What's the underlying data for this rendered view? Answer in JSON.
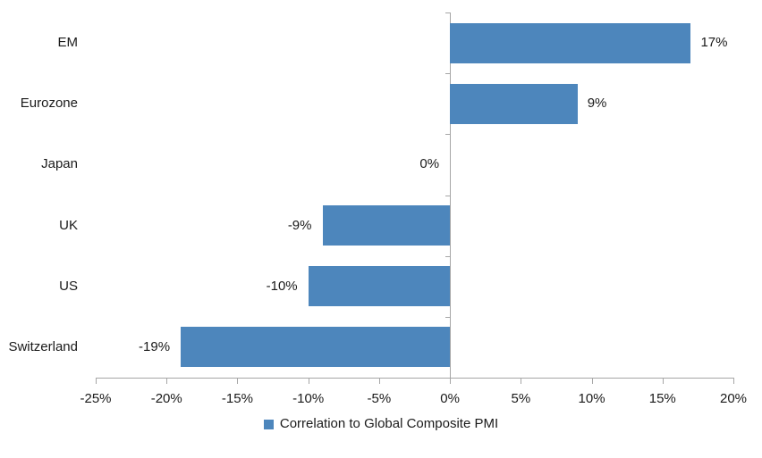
{
  "chart_data": {
    "type": "bar",
    "orientation": "horizontal",
    "title": "",
    "xlabel": "",
    "ylabel": "",
    "categories": [
      "EM",
      "Eurozone",
      "Japan",
      "UK",
      "US",
      "Switzerland"
    ],
    "series": [
      {
        "name": "Correlation to Global Composite PMI",
        "values": [
          17,
          9,
          0,
          -9,
          -10,
          -19
        ],
        "data_labels": [
          "17%",
          "9%",
          "0%",
          "-9%",
          "-10%",
          "-19%"
        ]
      }
    ],
    "xlim": [
      -25,
      20
    ],
    "x_ticks": [
      -25,
      -20,
      -15,
      -10,
      -5,
      0,
      5,
      10,
      15,
      20
    ],
    "x_tick_labels": [
      "-25%",
      "-20%",
      "-15%",
      "-10%",
      "-5%",
      "0%",
      "5%",
      "10%",
      "15%",
      "20%"
    ],
    "grid": false,
    "legend_position": "bottom-center",
    "colors": {
      "bar": "#4d86bc",
      "axis": "#a6a6a6",
      "text": "#1a1a1a",
      "background": "#ffffff"
    }
  }
}
